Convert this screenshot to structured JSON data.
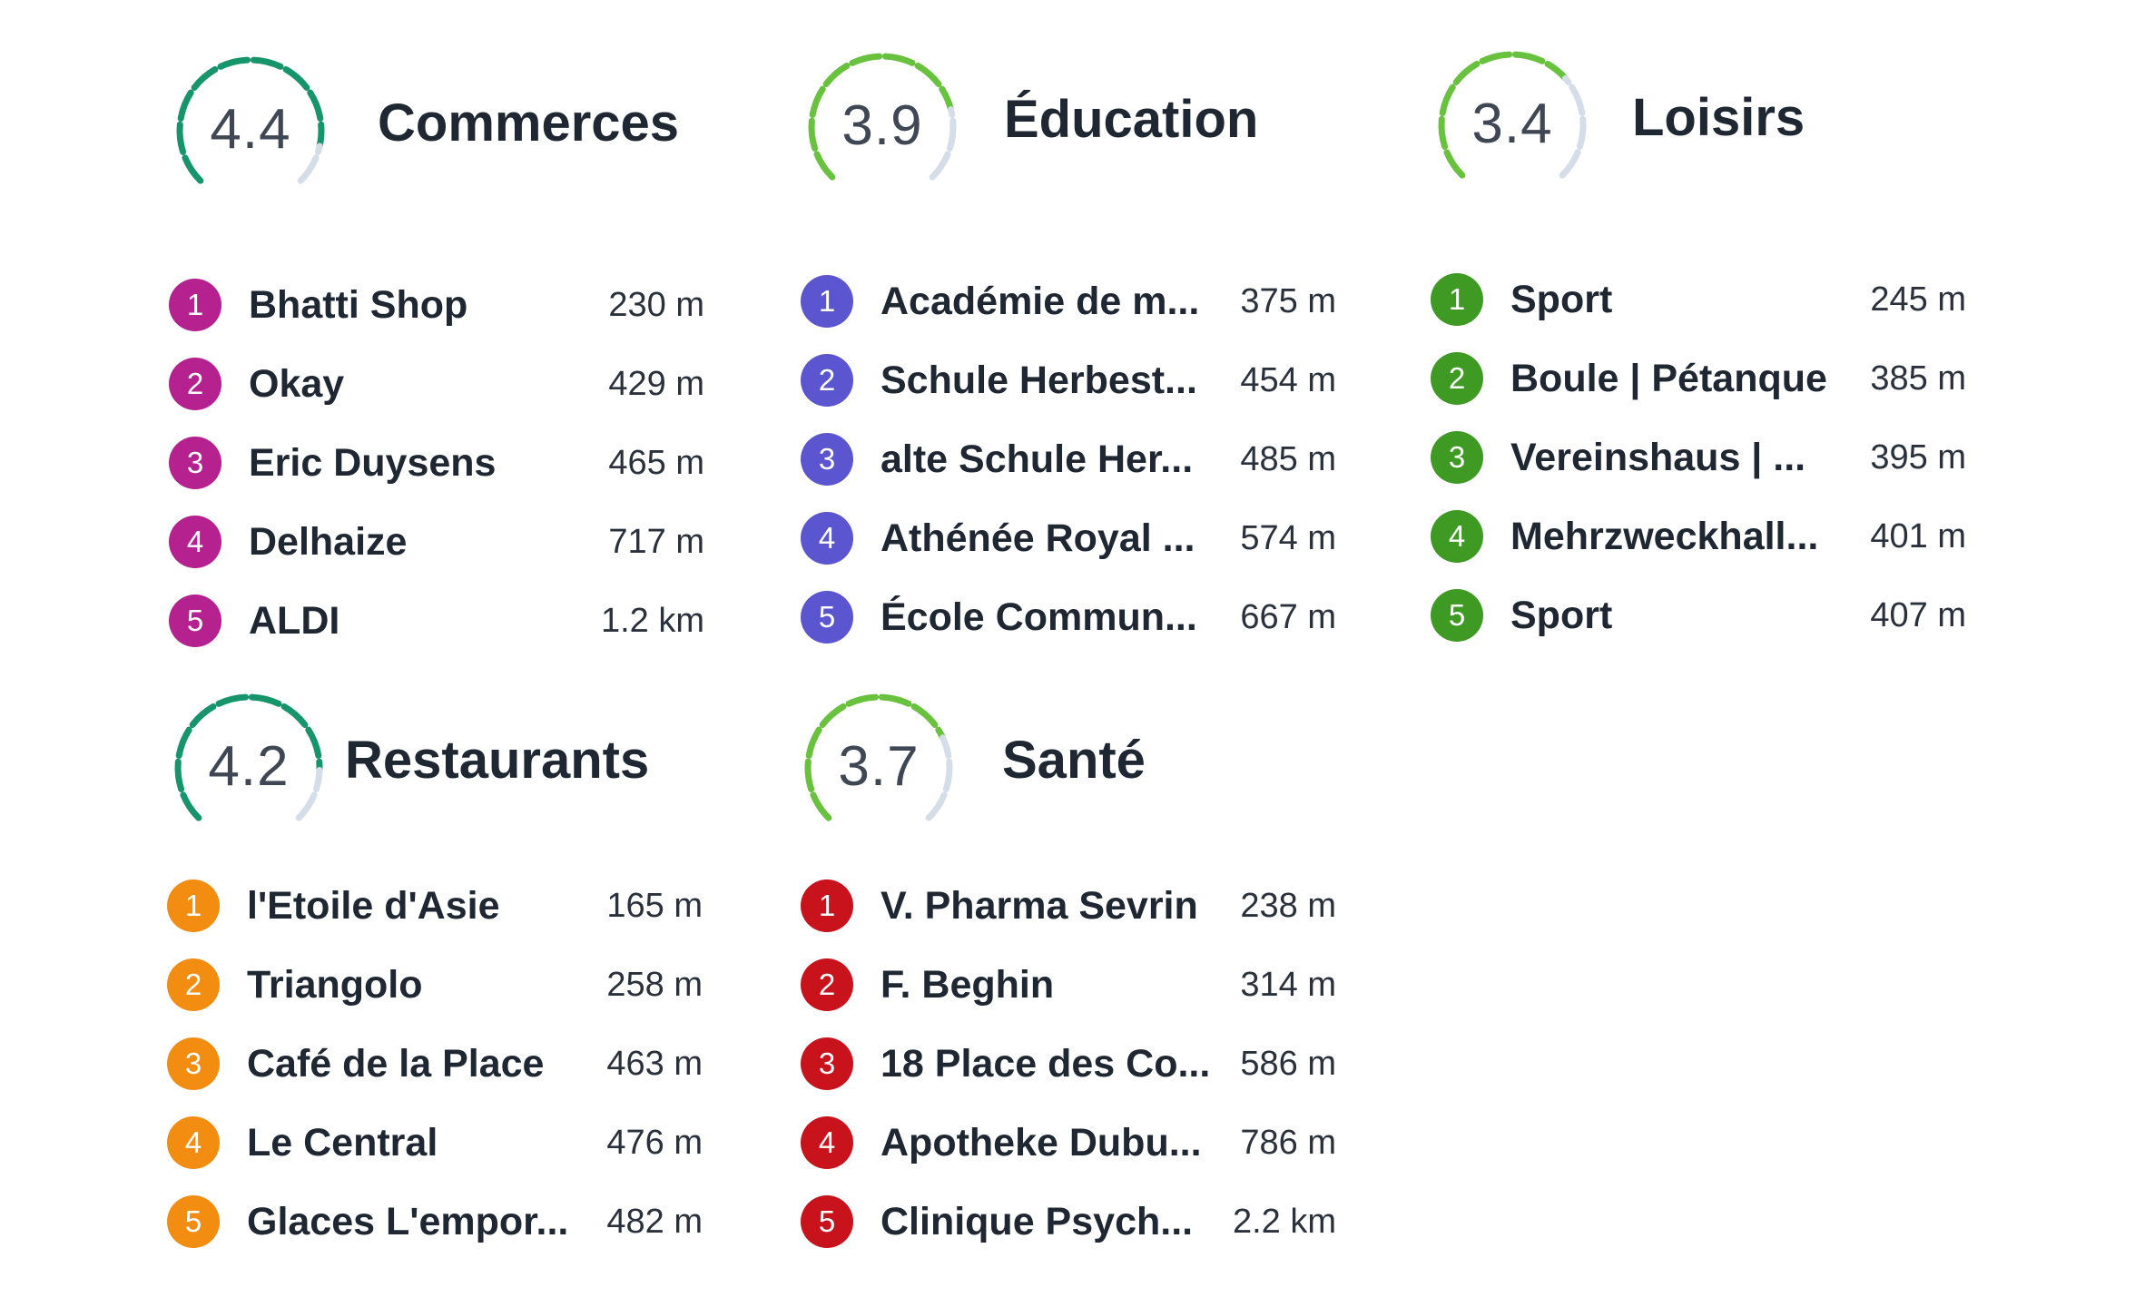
{
  "colors": {
    "gauge_track": "#d5dde8",
    "commerces": "#b5218f",
    "education": "#5b55cf",
    "loisirs": "#3f9a24",
    "restaurants": "#f28d12",
    "sante": "#c8121c"
  },
  "categories": [
    {
      "key": "commerces",
      "title": "Commerces",
      "score": "4.4",
      "score_fraction": 0.88,
      "gauge_color": "#17956a",
      "badge_color": "#b5218f",
      "items": [
        {
          "rank": "1",
          "name": "Bhatti Shop",
          "distance": "230 m"
        },
        {
          "rank": "2",
          "name": "Okay",
          "distance": "429 m"
        },
        {
          "rank": "3",
          "name": "Eric Duysens",
          "distance": "465 m"
        },
        {
          "rank": "4",
          "name": "Delhaize",
          "distance": "717 m"
        },
        {
          "rank": "5",
          "name": "ALDI",
          "distance": "1.2 km"
        }
      ]
    },
    {
      "key": "education",
      "title": "Éducation",
      "score": "3.9",
      "score_fraction": 0.78,
      "gauge_color": "#69c23e",
      "badge_color": "#5b55cf",
      "items": [
        {
          "rank": "1",
          "name": "Académie de m...",
          "distance": "375 m"
        },
        {
          "rank": "2",
          "name": "Schule Herbest...",
          "distance": "454 m"
        },
        {
          "rank": "3",
          "name": "alte Schule Her...",
          "distance": "485 m"
        },
        {
          "rank": "4",
          "name": "Athénée Royal ...",
          "distance": "574 m"
        },
        {
          "rank": "5",
          "name": "École Commun...",
          "distance": "667 m"
        }
      ]
    },
    {
      "key": "loisirs",
      "title": "Loisirs",
      "score": "3.4",
      "score_fraction": 0.68,
      "gauge_color": "#69c23e",
      "badge_color": "#3f9a24",
      "items": [
        {
          "rank": "1",
          "name": "Sport",
          "distance": "245 m"
        },
        {
          "rank": "2",
          "name": "Boule | Pétanque",
          "distance": "385 m"
        },
        {
          "rank": "3",
          "name": "Vereinshaus | ...",
          "distance": "395 m"
        },
        {
          "rank": "4",
          "name": "Mehrzweckhall...",
          "distance": "401 m"
        },
        {
          "rank": "5",
          "name": "Sport",
          "distance": "407 m"
        }
      ]
    },
    {
      "key": "restaurants",
      "title": "Restaurants",
      "score": "4.2",
      "score_fraction": 0.84,
      "gauge_color": "#17956a",
      "badge_color": "#f28d12",
      "items": [
        {
          "rank": "1",
          "name": "l'Etoile d'Asie",
          "distance": "165 m"
        },
        {
          "rank": "2",
          "name": "Triangolo",
          "distance": "258 m"
        },
        {
          "rank": "3",
          "name": "Café de la Place",
          "distance": "463 m"
        },
        {
          "rank": "4",
          "name": "Le Central",
          "distance": "476 m"
        },
        {
          "rank": "5",
          "name": "Glaces L'empor...",
          "distance": "482 m"
        }
      ]
    },
    {
      "key": "sante",
      "title": "Santé",
      "score": "3.7",
      "score_fraction": 0.74,
      "gauge_color": "#69c23e",
      "badge_color": "#c8121c",
      "items": [
        {
          "rank": "1",
          "name": "V. Pharma Sevrin",
          "distance": "238 m"
        },
        {
          "rank": "2",
          "name": "F. Beghin",
          "distance": "314 m"
        },
        {
          "rank": "3",
          "name": "18 Place des Co...",
          "distance": "586 m"
        },
        {
          "rank": "4",
          "name": "Apotheke Dubu...",
          "distance": "786 m"
        },
        {
          "rank": "5",
          "name": "Clinique Psych...",
          "distance": "2.2 km"
        }
      ]
    }
  ]
}
